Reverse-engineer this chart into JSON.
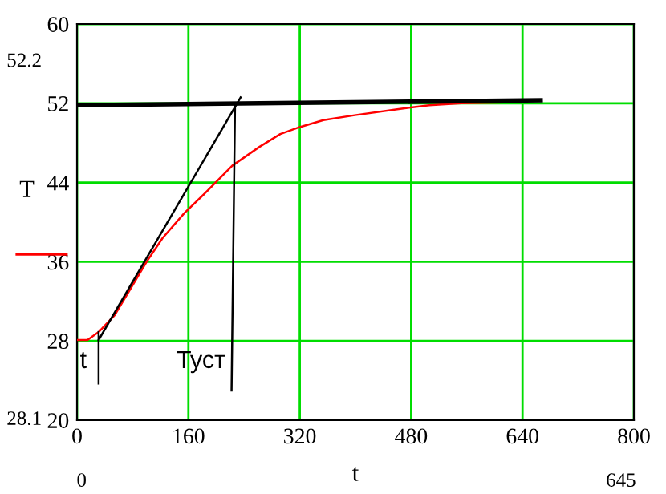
{
  "chart_data": {
    "type": "line",
    "xlabel": "t",
    "ylabel": "T",
    "xlim": [
      0,
      800
    ],
    "ylim": [
      20,
      60
    ],
    "xticks": [
      0,
      160,
      320,
      480,
      640,
      800
    ],
    "yticks": [
      20,
      28,
      36,
      44,
      52,
      60
    ],
    "grid": true,
    "series": [
      {
        "color": "#ff0000",
        "x": [
          0,
          15,
          31,
          54,
          77,
          100,
          123,
          154,
          185,
          223,
          262,
          292,
          320,
          354,
          399,
          460,
          506,
          552,
          628
        ],
        "values": [
          28.1,
          28.1,
          28.9,
          30.6,
          33.3,
          36.0,
          38.4,
          40.9,
          43.0,
          45.7,
          47.6,
          48.9,
          49.6,
          50.3,
          50.8,
          51.4,
          51.8,
          52.0,
          52.1
        ]
      },
      {
        "color": "#000000",
        "x": [
          0,
          666
        ],
        "values": [
          51.8,
          52.3
        ]
      },
      {
        "color": "#000000",
        "x": [
          31,
          235
        ],
        "values": [
          28.1,
          52.6
        ]
      },
      {
        "color": "#000000",
        "x": [
          31,
          31
        ],
        "values": [
          28.9,
          23.7
        ]
      },
      {
        "color": "#000000",
        "x": [
          227,
          222
        ],
        "values": [
          51.9,
          23.0
        ]
      }
    ],
    "annotations": [
      "t",
      "Туст",
      "52.2",
      "28.1",
      "0",
      "645"
    ]
  }
}
